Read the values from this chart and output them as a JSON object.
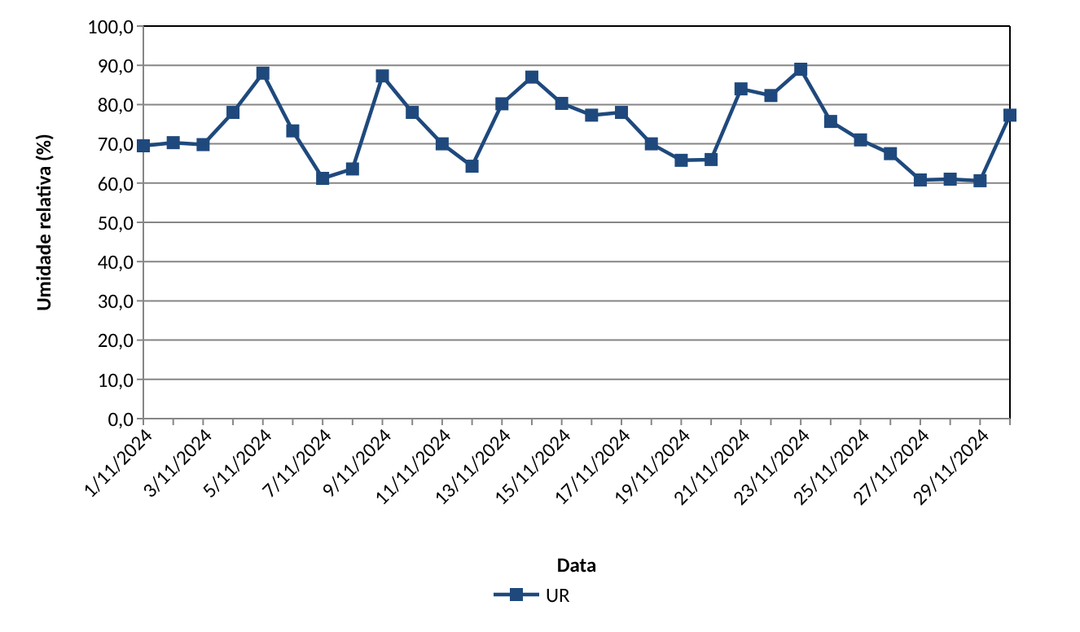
{
  "chart_data": {
    "type": "line",
    "xlabel": "Data",
    "ylabel": "Umidade relativa (%)",
    "categories": [
      "1/11/2024",
      null,
      "3/11/2024",
      null,
      "5/11/2024",
      null,
      "7/11/2024",
      null,
      "9/11/2024",
      null,
      "11/11/2024",
      null,
      "13/11/2024",
      null,
      "15/11/2024",
      null,
      "17/11/2024",
      null,
      "19/11/2024",
      null,
      "21/11/2024",
      null,
      "23/11/2024",
      null,
      "25/11/2024",
      null,
      "27/11/2024",
      null,
      "29/11/2024",
      null
    ],
    "series": [
      {
        "name": "UR",
        "color": "#1f497d",
        "values": [
          69.5,
          70.3,
          69.8,
          78,
          88,
          73.3,
          61.2,
          63.6,
          87.3,
          78,
          70,
          64.3,
          80.2,
          87,
          80.3,
          77.3,
          78,
          70,
          65.8,
          66,
          84,
          82.3,
          89,
          75.7,
          71,
          67.5,
          60.8,
          61,
          60.6,
          77.3
        ]
      }
    ],
    "ylim": [
      0,
      100
    ],
    "yticks": [
      {
        "value": 0,
        "label": "0,0"
      },
      {
        "value": 10,
        "label": "10,0"
      },
      {
        "value": 20,
        "label": "20,0"
      },
      {
        "value": 30,
        "label": "30,0"
      },
      {
        "value": 40,
        "label": "40,0"
      },
      {
        "value": 50,
        "label": "50,0"
      },
      {
        "value": 60,
        "label": "60,0"
      },
      {
        "value": 70,
        "label": "70,0"
      },
      {
        "value": 80,
        "label": "80,0"
      },
      {
        "value": 90,
        "label": "90,0"
      },
      {
        "value": 100,
        "label": "100,0"
      }
    ],
    "grid": "y",
    "legend": "bottom",
    "marker": "square",
    "line_style": "solid"
  }
}
